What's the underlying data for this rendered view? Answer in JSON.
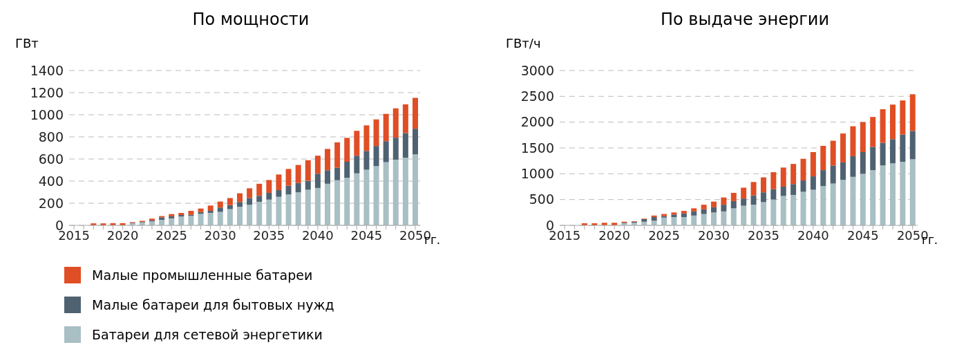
{
  "chart_data": [
    {
      "type": "bar",
      "title": "По мощности",
      "ylabel": "ГВт",
      "xlabel": "гг.",
      "stacked": true,
      "grid": "y",
      "legend": "bottom",
      "categories": [
        "2015",
        null,
        null,
        null,
        null,
        "2020",
        null,
        null,
        null,
        null,
        "2025",
        null,
        null,
        null,
        null,
        "2030",
        null,
        null,
        null,
        null,
        "2035",
        null,
        null,
        null,
        null,
        "2040",
        null,
        null,
        null,
        null,
        "2045",
        null,
        null,
        null,
        null,
        "2050"
      ],
      "ylim": [
        0,
        1400
      ],
      "yticks": [
        0,
        200,
        400,
        600,
        800,
        1000,
        1200,
        1400
      ],
      "series": [
        {
          "name": "Батареи для сетевой энергетики",
          "color": "#a8bfc4",
          "values": [
            0,
            0,
            0,
            0,
            0,
            0,
            18,
            27,
            36,
            50,
            63,
            79,
            86,
            104,
            113,
            122,
            147,
            168,
            186,
            213,
            233,
            258,
            279,
            299,
            322,
            338,
            376,
            408,
            430,
            471,
            503,
            535,
            571,
            594,
            612,
            641
          ]
        },
        {
          "name": "Малые батареи для бытовых нужд",
          "color": "#4f6272",
          "values": [
            0,
            0,
            0,
            0,
            0,
            0,
            5,
            5,
            9,
            22,
            19,
            14,
            9,
            16,
            18,
            39,
            36,
            43,
            61,
            54,
            61,
            61,
            79,
            84,
            81,
            129,
            122,
            113,
            145,
            159,
            170,
            183,
            190,
            199,
            222,
            233
          ]
        },
        {
          "name": "Малые промышленные батареи",
          "color": "#e04e25",
          "values": [
            0,
            0,
            18,
            18,
            20,
            20,
            6,
            9,
            16,
            12,
            20,
            20,
            36,
            32,
            48,
            54,
            64,
            79,
            88,
            109,
            116,
            141,
            152,
            163,
            186,
            163,
            193,
            229,
            216,
            224,
            231,
            240,
            247,
            265,
            260,
            279
          ]
        }
      ]
    },
    {
      "type": "bar",
      "title": "По выдаче энергии",
      "ylabel": "ГВт/ч",
      "xlabel": "гг.",
      "stacked": true,
      "grid": "y",
      "categories": [
        "2015",
        null,
        null,
        null,
        null,
        "2020",
        null,
        null,
        null,
        null,
        "2025",
        null,
        null,
        null,
        null,
        "2030",
        null,
        null,
        null,
        null,
        "2035",
        null,
        null,
        null,
        null,
        "2040",
        null,
        null,
        null,
        null,
        "2045",
        null,
        null,
        null,
        null,
        "2050"
      ],
      "ylim": [
        0,
        3000
      ],
      "yticks": [
        0,
        500,
        1000,
        1500,
        2000,
        2500,
        3000
      ],
      "series": [
        {
          "color": "#a8bfc4",
          "values": [
            0,
            0,
            0,
            0,
            0,
            0,
            40,
            50,
            70,
            90,
            150,
            160,
            160,
            190,
            220,
            250,
            270,
            330,
            380,
            400,
            450,
            500,
            570,
            590,
            650,
            690,
            760,
            810,
            880,
            940,
            1000,
            1070,
            1160,
            1200,
            1230,
            1280
          ]
        },
        {
          "color": "#4f6272",
          "values": [
            0,
            0,
            0,
            0,
            0,
            0,
            10,
            20,
            50,
            70,
            30,
            50,
            70,
            80,
            90,
            100,
            130,
            140,
            140,
            180,
            190,
            200,
            180,
            210,
            220,
            260,
            310,
            350,
            340,
            400,
            420,
            450,
            440,
            470,
            530,
            550
          ]
        },
        {
          "color": "#e04e25",
          "values": [
            0,
            0,
            40,
            40,
            50,
            50,
            20,
            10,
            10,
            30,
            40,
            40,
            50,
            60,
            90,
            110,
            140,
            160,
            210,
            260,
            290,
            330,
            370,
            390,
            420,
            470,
            470,
            480,
            560,
            580,
            580,
            580,
            650,
            670,
            660,
            710
          ]
        }
      ]
    }
  ]
}
